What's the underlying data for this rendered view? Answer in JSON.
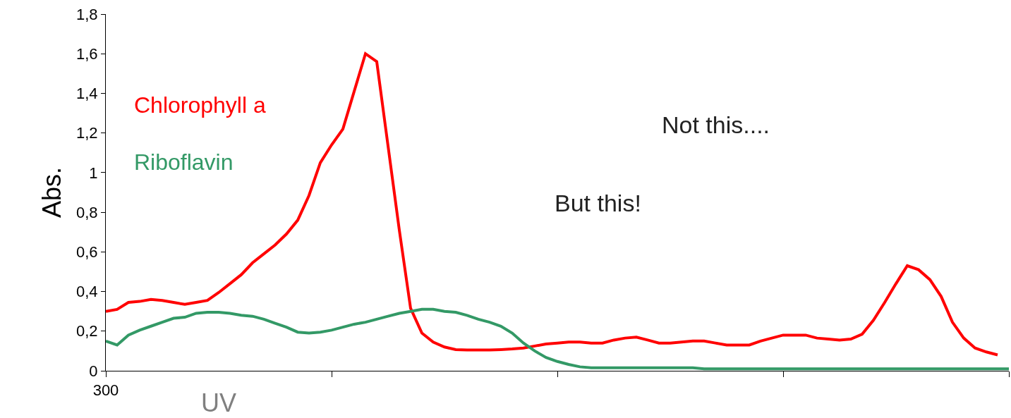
{
  "chart_data": {
    "type": "line",
    "ylabel": "Abs.",
    "categories": [
      "300",
      null,
      null,
      null,
      null,
      null,
      null,
      null,
      null,
      null,
      null,
      null,
      null,
      null,
      null,
      null,
      null,
      null,
      null,
      null,
      null,
      null,
      null,
      null,
      null,
      null,
      null,
      null,
      null,
      null,
      null,
      null,
      null,
      null,
      null,
      null,
      null,
      null,
      null,
      null,
      null,
      null,
      null,
      null,
      null,
      null,
      null,
      null,
      null,
      null,
      null,
      null,
      null,
      null,
      null,
      null,
      null,
      null,
      null,
      null,
      null,
      null,
      null,
      null,
      null,
      null,
      null,
      null,
      null,
      null,
      null,
      null,
      null,
      null,
      null,
      null,
      null,
      null,
      null,
      null,
      null
    ],
    "series": [
      {
        "name": "Chlorophyll a",
        "color": "#ff0000",
        "values": [
          0.3,
          0.31,
          0.345,
          0.35,
          0.36,
          0.355,
          0.345,
          0.335,
          0.345,
          0.355,
          0.395,
          0.44,
          0.485,
          0.545,
          0.59,
          0.635,
          0.69,
          0.76,
          0.885,
          1.05,
          1.14,
          1.22,
          1.41,
          1.6,
          1.56,
          1.135,
          0.71,
          0.315,
          0.19,
          0.145,
          0.12,
          0.107,
          0.105,
          0.105,
          0.105,
          0.107,
          0.11,
          0.115,
          0.125,
          0.135,
          0.14,
          0.145,
          0.145,
          0.14,
          0.14,
          0.155,
          0.165,
          0.17,
          0.155,
          0.14,
          0.14,
          0.145,
          0.15,
          0.15,
          0.14,
          0.13,
          0.13,
          0.13,
          0.15,
          0.165,
          0.18,
          0.18,
          0.18,
          0.165,
          0.16,
          0.155,
          0.16,
          0.185,
          0.255,
          0.345,
          0.44,
          0.53,
          0.51,
          0.46,
          0.375,
          0.245,
          0.165,
          0.115,
          0.095,
          0.08,
          null
        ]
      },
      {
        "name": "Riboflavin",
        "color": "#339966",
        "values": [
          0.15,
          0.13,
          0.18,
          0.205,
          0.225,
          0.245,
          0.265,
          0.27,
          0.29,
          0.295,
          0.295,
          0.29,
          0.28,
          0.275,
          0.26,
          0.24,
          0.22,
          0.195,
          0.19,
          0.195,
          0.205,
          0.22,
          0.235,
          0.245,
          0.26,
          0.275,
          0.29,
          0.3,
          0.31,
          0.31,
          0.3,
          0.295,
          0.28,
          0.26,
          0.245,
          0.225,
          0.19,
          0.14,
          0.1,
          0.067,
          0.047,
          0.032,
          0.02,
          0.015,
          0.015,
          0.015,
          0.015,
          0.015,
          0.015,
          0.015,
          0.015,
          0.015,
          0.015,
          0.01,
          0.01,
          0.01,
          0.01,
          0.01,
          0.01,
          0.01,
          0.01,
          0.01,
          0.01,
          0.01,
          0.01,
          0.01,
          0.01,
          0.01,
          0.01,
          0.01,
          0.01,
          0.01,
          0.01,
          0.01,
          0.01,
          0.01,
          0.01,
          0.01,
          0.01,
          0.01,
          0.01
        ]
      }
    ],
    "ylim": [
      0,
      1.8
    ],
    "yticks": [
      0,
      {
        "value": 0.2,
        "label": "0,2"
      },
      {
        "value": 0.4,
        "label": "0,4"
      },
      {
        "value": 0.6,
        "label": "0,6"
      },
      {
        "value": 0.8,
        "label": "0,8"
      },
      1,
      {
        "value": 1.2,
        "label": "1,2"
      },
      {
        "value": 1.4,
        "label": "1,4"
      },
      {
        "value": 1.6,
        "label": "1,6"
      },
      {
        "value": 1.8,
        "label": "1,8"
      }
    ],
    "legend": false,
    "marker": "none",
    "line_style": "solid",
    "annotations": [
      "Not this....",
      "But this!",
      "UV"
    ]
  }
}
